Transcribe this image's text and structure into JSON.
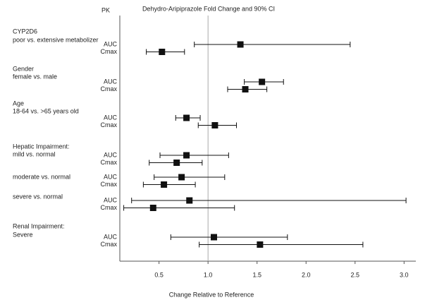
{
  "chart_data": {
    "type": "forest",
    "title": "Dehydro-Aripiprazole Fold Change and 90% CI",
    "header": "PK",
    "x_label": "Change Relative to Reference",
    "xlim": [
      0.1,
      3.12
    ],
    "xticks": [
      0.5,
      {
        "value": 1,
        "label": "1.0"
      },
      1.5,
      {
        "value": 2,
        "label": "2.0"
      },
      2.5,
      {
        "value": 3,
        "label": "3.0"
      }
    ],
    "reference": 1,
    "color": "#111111",
    "groups": [
      {
        "label": [
          "CYP2D6",
          "poor vs. extensive metabolizer"
        ],
        "measures": [
          "AUC",
          "Cmax"
        ],
        "values": [
          1.33,
          0.53
        ],
        "lower": [
          0.86,
          0.37
        ],
        "upper": [
          2.45,
          0.76
        ]
      },
      {
        "label": [
          "Gender",
          "female vs. male"
        ],
        "measures": [
          "AUC",
          "Cmax"
        ],
        "values": [
          1.55,
          1.38
        ],
        "lower": [
          1.37,
          1.2
        ],
        "upper": [
          1.77,
          1.6
        ]
      },
      {
        "label": [
          "Age",
          "18-64 vs. >65 years old"
        ],
        "measures": [
          "AUC",
          "Cmax"
        ],
        "values": [
          0.78,
          1.07
        ],
        "lower": [
          0.67,
          0.9
        ],
        "upper": [
          0.92,
          1.29
        ]
      },
      {
        "label": [
          "Hepatic Impairment:",
          "mild vs. normal"
        ],
        "measures": [
          "AUC",
          "Cmax"
        ],
        "values": [
          0.78,
          0.68
        ],
        "lower": [
          0.51,
          0.4
        ],
        "upper": [
          1.21,
          0.94
        ]
      },
      {
        "label": [
          "moderate vs. normal"
        ],
        "measures": [
          "AUC",
          "Cmax"
        ],
        "values": [
          0.73,
          0.55
        ],
        "lower": [
          0.45,
          0.34
        ],
        "upper": [
          1.17,
          0.87
        ]
      },
      {
        "label": [
          "severe vs. normal"
        ],
        "measures": [
          "AUC",
          "Cmax"
        ],
        "values": [
          0.81,
          0.44
        ],
        "lower": [
          0.22,
          0.14
        ],
        "upper": [
          3.02,
          1.27
        ]
      },
      {
        "label": [
          "Renal Impairment:",
          "Severe"
        ],
        "measures": [
          "AUC",
          "Cmax"
        ],
        "values": [
          1.06,
          1.53
        ],
        "lower": [
          0.62,
          0.91
        ],
        "upper": [
          1.81,
          2.58
        ]
      }
    ]
  }
}
